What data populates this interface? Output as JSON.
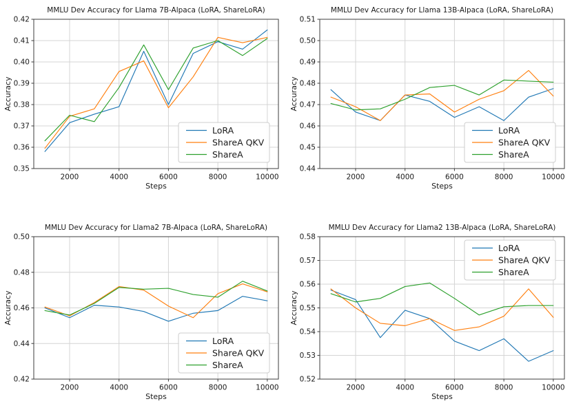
{
  "figure": {
    "background": "#ffffff",
    "grid_color": "#d4d4d4",
    "spine_color": "#3c3c3c",
    "text_color": "#1a1a1a",
    "legend_border_color": "#cccccc"
  },
  "chart_data": [
    {
      "type": "line",
      "title": "MMLU Dev Accuracy for Llama 7B-Alpaca (LoRA, ShareLoRA)",
      "xlabel": "Steps",
      "ylabel": "Accuracy",
      "x": [
        1000,
        2000,
        3000,
        4000,
        5000,
        6000,
        7000,
        8000,
        9000,
        10000
      ],
      "xticks": [
        2000,
        4000,
        6000,
        8000,
        10000
      ],
      "xlim": [
        550,
        10450
      ],
      "ylim": [
        0.35,
        0.42
      ],
      "yticks": [
        0.35,
        0.36,
        0.37,
        0.38,
        0.39,
        0.4,
        0.41,
        0.42
      ],
      "grid": true,
      "legend_position": "lower-right",
      "series": [
        {
          "name": "LoRA",
          "color": "#1f77b4",
          "values": [
            0.358,
            0.3715,
            0.3755,
            0.379,
            0.405,
            0.38,
            0.404,
            0.4095,
            0.406,
            0.415
          ]
        },
        {
          "name": "ShareA QKV",
          "color": "#ff7f0e",
          "values": [
            0.3595,
            0.3745,
            0.378,
            0.3955,
            0.4005,
            0.3785,
            0.393,
            0.4115,
            0.409,
            0.4115
          ]
        },
        {
          "name": "ShareA",
          "color": "#2ca02c",
          "values": [
            0.363,
            0.375,
            0.372,
            0.388,
            0.408,
            0.387,
            0.4065,
            0.41,
            0.403,
            0.411
          ]
        }
      ]
    },
    {
      "type": "line",
      "title": "MMLU Dev Accuracy for Llama 13B-Alpaca (LoRA, ShareLoRA)",
      "xlabel": "Steps",
      "ylabel": "Accuracy",
      "x": [
        1000,
        2000,
        3000,
        4000,
        5000,
        6000,
        7000,
        8000,
        9000,
        10000
      ],
      "xticks": [
        2000,
        4000,
        6000,
        8000,
        10000
      ],
      "xlim": [
        550,
        10450
      ],
      "ylim": [
        0.44,
        0.51
      ],
      "yticks": [
        0.44,
        0.45,
        0.46,
        0.47,
        0.48,
        0.49,
        0.5,
        0.51
      ],
      "grid": true,
      "legend_position": "lower-right",
      "series": [
        {
          "name": "LoRA",
          "color": "#1f77b4",
          "values": [
            0.477,
            0.4665,
            0.4625,
            0.4745,
            0.4715,
            0.464,
            0.469,
            0.4625,
            0.4735,
            0.4775
          ]
        },
        {
          "name": "ShareA QKV",
          "color": "#ff7f0e",
          "values": [
            0.4735,
            0.469,
            0.4625,
            0.4745,
            0.475,
            0.4665,
            0.4725,
            0.4765,
            0.486,
            0.474
          ]
        },
        {
          "name": "ShareA",
          "color": "#2ca02c",
          "values": [
            0.4705,
            0.4675,
            0.468,
            0.4725,
            0.478,
            0.479,
            0.4745,
            0.4815,
            0.481,
            0.4805
          ]
        }
      ]
    },
    {
      "type": "line",
      "title": "MMLU Dev Accuracy for Llama2 7B-Alpaca (LoRA, ShareLoRA)",
      "xlabel": "Steps",
      "ylabel": "Accuracy",
      "x": [
        1000,
        2000,
        3000,
        4000,
        5000,
        6000,
        7000,
        8000,
        9000,
        10000
      ],
      "xticks": [
        2000,
        4000,
        6000,
        8000,
        10000
      ],
      "xlim": [
        550,
        10450
      ],
      "ylim": [
        0.42,
        0.5
      ],
      "yticks": [
        0.42,
        0.44,
        0.46,
        0.48,
        0.5
      ],
      "grid": true,
      "legend_position": "lower-right",
      "series": [
        {
          "name": "LoRA",
          "color": "#1f77b4",
          "values": [
            0.46,
            0.4545,
            0.4615,
            0.4605,
            0.458,
            0.4525,
            0.457,
            0.4585,
            0.4665,
            0.464
          ]
        },
        {
          "name": "ShareA QKV",
          "color": "#ff7f0e",
          "values": [
            0.4605,
            0.4555,
            0.463,
            0.472,
            0.47,
            0.461,
            0.4545,
            0.468,
            0.4735,
            0.469
          ]
        },
        {
          "name": "ShareA",
          "color": "#2ca02c",
          "values": [
            0.4585,
            0.456,
            0.4625,
            0.4715,
            0.4705,
            0.471,
            0.4675,
            0.466,
            0.475,
            0.4695
          ]
        }
      ]
    },
    {
      "type": "line",
      "title": "MMLU Dev Accuracy for Llama2 13B-Alpaca (LoRA, ShareLoRA)",
      "xlabel": "Steps",
      "ylabel": "Accuracy",
      "x": [
        1000,
        2000,
        3000,
        4000,
        5000,
        6000,
        7000,
        8000,
        9000,
        10000
      ],
      "xticks": [
        2000,
        4000,
        6000,
        8000,
        10000
      ],
      "xlim": [
        550,
        10450
      ],
      "ylim": [
        0.52,
        0.58
      ],
      "yticks": [
        0.52,
        0.53,
        0.54,
        0.55,
        0.56,
        0.57,
        0.58
      ],
      "grid": true,
      "legend_position": "upper-right",
      "series": [
        {
          "name": "LoRA",
          "color": "#1f77b4",
          "values": [
            0.5575,
            0.5535,
            0.5375,
            0.549,
            0.5455,
            0.536,
            0.532,
            0.537,
            0.5275,
            0.532
          ]
        },
        {
          "name": "ShareA QKV",
          "color": "#ff7f0e",
          "values": [
            0.558,
            0.55,
            0.5435,
            0.5425,
            0.5455,
            0.5405,
            0.542,
            0.5465,
            0.558,
            0.546
          ]
        },
        {
          "name": "ShareA",
          "color": "#2ca02c",
          "values": [
            0.556,
            0.5525,
            0.554,
            0.559,
            0.5605,
            0.554,
            0.547,
            0.5505,
            0.551,
            0.551
          ]
        }
      ]
    }
  ]
}
